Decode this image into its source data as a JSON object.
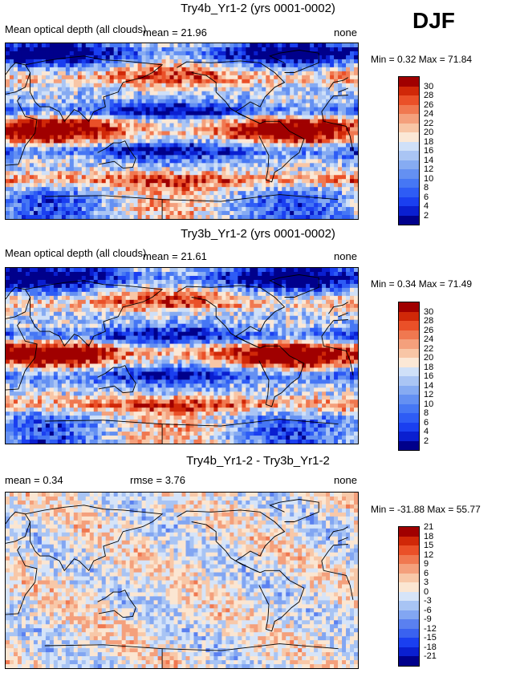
{
  "season": "DJF",
  "panels": [
    {
      "title": "Try4b_Yr1-2 (yrs 0001-0002)",
      "left_text": "Mean optical depth (all clouds)",
      "center_text": "mean =   21.96",
      "right_text": "none",
      "minmax": "Min =   0.32 Max =   71.84"
    },
    {
      "title": "Try3b_Yr1-2 (yrs 0001-0002)",
      "left_text": "Mean optical depth (all clouds)",
      "center_text": "mean =   21.61",
      "right_text": "none",
      "minmax": "Min =   0.34 Max =   71.49"
    },
    {
      "title": "Try4b_Yr1-2 - Try3b_Yr1-2",
      "left_text": "mean =   0.34",
      "center_text": "rmse =   3.76",
      "right_text": "none",
      "minmax": "Min = -31.88 Max =   55.77"
    }
  ],
  "chart_data": [
    {
      "type": "heatmap",
      "title": "Try4b_Yr1-2 (yrs 0001-0002)",
      "variable": "Mean optical depth (all clouds)",
      "mean": 21.96,
      "min": 0.32,
      "max": 71.84,
      "units": "none",
      "colorbar_levels": [
        2,
        4,
        6,
        8,
        10,
        12,
        14,
        16,
        18,
        20,
        22,
        24,
        26,
        28,
        30
      ]
    },
    {
      "type": "heatmap",
      "title": "Try3b_Yr1-2 (yrs 0001-0002)",
      "variable": "Mean optical depth (all clouds)",
      "mean": 21.61,
      "min": 0.34,
      "max": 71.49,
      "units": "none",
      "colorbar_levels": [
        2,
        4,
        6,
        8,
        10,
        12,
        14,
        16,
        18,
        20,
        22,
        24,
        26,
        28,
        30
      ]
    },
    {
      "type": "heatmap",
      "title": "Try4b_Yr1-2 - Try3b_Yr1-2",
      "mean": 0.34,
      "rmse": 3.76,
      "min": -31.88,
      "max": 55.77,
      "units": "none",
      "colorbar_levels": [
        -21,
        -18,
        -15,
        -12,
        -9,
        -6,
        -3,
        0,
        3,
        6,
        9,
        12,
        15,
        18,
        21
      ]
    }
  ],
  "colors": {
    "abs_scale": [
      "#00008b",
      "#0a1fd0",
      "#1a3ff0",
      "#2e5cf5",
      "#4677f4",
      "#6490f2",
      "#86abf2",
      "#aac5f4",
      "#cfe0f8",
      "#fbe8d6",
      "#f8c6a6",
      "#f4a07c",
      "#f07850",
      "#ea5028",
      "#d02808",
      "#a00000"
    ],
    "diff_scale": [
      "#00008b",
      "#0a1fd0",
      "#1a3ff0",
      "#3a62f0",
      "#5a80f0",
      "#82a6f2",
      "#a8c4f4",
      "#d6e4f8",
      "#fbe6d2",
      "#f8c8a8",
      "#f4a07c",
      "#f07850",
      "#ea5028",
      "#d02808",
      "#a00000"
    ]
  }
}
